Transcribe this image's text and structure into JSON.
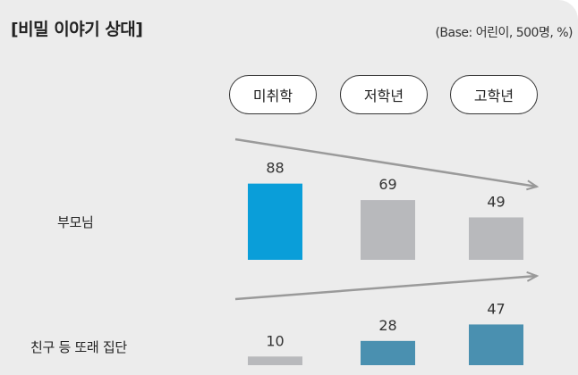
{
  "title": "[비밀 이야기 상대]",
  "base_note": "(Base: 어린이, 500명, %)",
  "chart_data": {
    "type": "bar",
    "categories": [
      "미취학",
      "저학년",
      "고학년"
    ],
    "groups": [
      {
        "label": "부모님",
        "values": [
          88,
          69,
          49
        ],
        "colors": [
          "#0a9ed9",
          "#b8b9bc",
          "#b8b9bc"
        ],
        "trend": "down"
      },
      {
        "label": "친구 등 또래 집단",
        "values": [
          10,
          28,
          47
        ],
        "colors": [
          "#b8b9bc",
          "#4a90b0",
          "#4a90b0"
        ],
        "trend": "up"
      }
    ],
    "unit": "%",
    "ylim": [
      0,
      100
    ]
  }
}
